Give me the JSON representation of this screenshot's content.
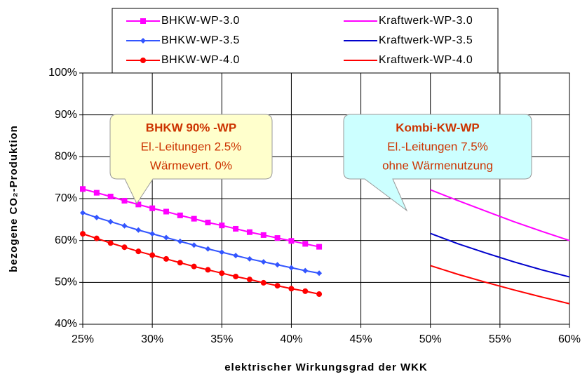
{
  "chart_data": {
    "type": "line",
    "xlabel": "elektrischer Wirkungsgrad der WKK",
    "ylabel": "bezogene CO₂-Produktion",
    "xlim": [
      25,
      60
    ],
    "xticks": [
      {
        "value": 25,
        "label": "25%"
      },
      {
        "value": 30,
        "label": "30%"
      },
      {
        "value": 35,
        "label": "35%"
      },
      {
        "value": 40,
        "label": "40%"
      },
      {
        "value": 45,
        "label": "45%"
      },
      {
        "value": 50,
        "label": "50%"
      },
      {
        "value": 55,
        "label": "55%"
      },
      {
        "value": 60,
        "label": "60%"
      }
    ],
    "ylim": [
      40,
      100
    ],
    "yticks": [
      {
        "value": 40,
        "label": "40%"
      },
      {
        "value": 50,
        "label": "50%"
      },
      {
        "value": 60,
        "label": "60%"
      },
      {
        "value": 70,
        "label": "70%"
      },
      {
        "value": 80,
        "label": "80%"
      },
      {
        "value": 90,
        "label": "90%"
      },
      {
        "value": 100,
        "label": "100%"
      }
    ],
    "grid": true,
    "series": [
      {
        "name": "BHKW-WP-3.0",
        "color": "#ff00ff",
        "marker": "square",
        "x": [
          25,
          26,
          27,
          28,
          29,
          30,
          31,
          32,
          33,
          34,
          35,
          36,
          37,
          38,
          39,
          40,
          41,
          42
        ],
        "values": [
          72.3,
          71.4,
          70.5,
          69.5,
          68.6,
          67.7,
          66.9,
          66.0,
          65.2,
          64.3,
          63.6,
          62.8,
          62.0,
          61.3,
          60.6,
          59.9,
          59.2,
          58.5
        ]
      },
      {
        "name": "Kraftwerk-WP-3.0",
        "color": "#ff00ff",
        "marker": "none",
        "x": [
          50,
          52,
          54,
          56,
          58,
          60
        ],
        "values": [
          72.1,
          69.5,
          67.0,
          64.5,
          62.2,
          60.0
        ]
      },
      {
        "name": "BHKW-WP-3.5",
        "color": "#3355ff",
        "marker": "diamond",
        "x": [
          25,
          26,
          27,
          28,
          29,
          30,
          31,
          32,
          33,
          34,
          35,
          36,
          37,
          38,
          39,
          40,
          41,
          42
        ],
        "values": [
          66.6,
          65.5,
          64.5,
          63.5,
          62.5,
          61.6,
          60.7,
          59.8,
          58.9,
          58.0,
          57.2,
          56.4,
          55.6,
          54.9,
          54.2,
          53.5,
          52.8,
          52.2
        ]
      },
      {
        "name": "Kraftwerk-WP-3.5",
        "color": "#0000cc",
        "marker": "none",
        "x": [
          50,
          52,
          54,
          56,
          58,
          60
        ],
        "values": [
          61.7,
          59.2,
          57.0,
          54.9,
          53.0,
          51.3
        ]
      },
      {
        "name": "BHKW-WP-4.0",
        "color": "#ff0000",
        "marker": "circle",
        "x": [
          25,
          26,
          27,
          28,
          29,
          30,
          31,
          32,
          33,
          34,
          35,
          36,
          37,
          38,
          39,
          40,
          41,
          42
        ],
        "values": [
          61.6,
          60.5,
          59.4,
          58.4,
          57.4,
          56.5,
          55.6,
          54.7,
          53.8,
          53.0,
          52.2,
          51.4,
          50.7,
          49.9,
          49.2,
          48.5,
          47.9,
          47.2
        ]
      },
      {
        "name": "Kraftwerk-WP-4.0",
        "color": "#ff0000",
        "marker": "none",
        "x": [
          50,
          52,
          54,
          56,
          58,
          60
        ],
        "values": [
          54.0,
          51.9,
          50.0,
          48.2,
          46.5,
          44.9
        ]
      }
    ],
    "annotations": [
      {
        "lines": [
          "BHKW 90% -WP",
          "El.-Leitungen 2.5%",
          "Wärmevert.  0%"
        ],
        "fill": "#ffffcc"
      },
      {
        "lines": [
          "Kombi-KW-WP",
          "El.-Leitungen 7.5%",
          "ohne Wärmenutzung"
        ],
        "fill": "#ccffff"
      }
    ]
  }
}
